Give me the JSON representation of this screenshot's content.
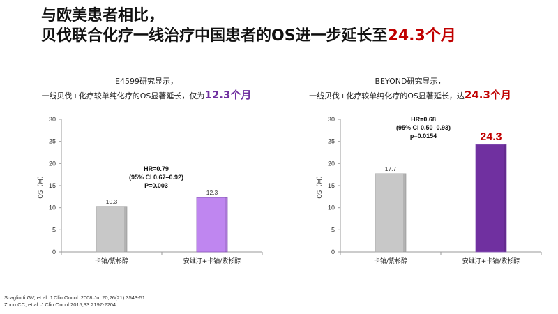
{
  "title": {
    "line1": "与欧美患者相比，",
    "line2_prefix": "贝伐联合化疗一线治疗中国患者的OS进一步延长至",
    "line2_highlight": "24.3个月"
  },
  "left_caption": {
    "line1": "E4599研究显示，",
    "line2_prefix": "一线贝伐+化疗较单纯化疗的OS显著延长，仅为",
    "line2_highlight": "12.3个月"
  },
  "right_caption": {
    "line1": "BEYOND研究显示，",
    "line2_prefix": "一线贝伐+化疗较单纯化疗的OS显著延长，达",
    "line2_highlight": "24.3个月"
  },
  "chart_data": [
    {
      "type": "bar",
      "categories": [
        "卡铂/紫杉醇",
        "安维汀+卡铂/紫杉醇"
      ],
      "values": [
        10.3,
        12.3
      ],
      "value_labels": [
        "10.3",
        "12.3"
      ],
      "colors": [
        "#c8c8c8",
        "#bf86f0"
      ],
      "ylabel": "OS（月）",
      "ylim": [
        0,
        30
      ],
      "yticks": [
        0,
        5,
        10,
        15,
        20,
        25,
        30
      ],
      "stats": [
        "HR=0.79",
        "(95% CI 0.67–0.92)",
        "P=0.003"
      ]
    },
    {
      "type": "bar",
      "categories": [
        "卡铂/紫杉醇",
        "安维汀+卡铂/紫杉醇"
      ],
      "values": [
        17.7,
        24.3
      ],
      "value_labels": [
        "17.7",
        "24.3"
      ],
      "colors": [
        "#c8c8c8",
        "#7030a0"
      ],
      "ylabel": "OS（月）",
      "ylim": [
        0,
        30
      ],
      "yticks": [
        0,
        5,
        10,
        15,
        20,
        25,
        30
      ],
      "stats": [
        "HR=0.68",
        "(95% CI 0.50–0.93)",
        "p=0.0154"
      ]
    }
  ],
  "references": [
    "Scagliotti GV, et al. J Clin Oncol. 2008 Jul 20;26(21):3543-51.",
    "Zhou CC, et al. J Clin Oncol 2015;33:2197-2204."
  ]
}
